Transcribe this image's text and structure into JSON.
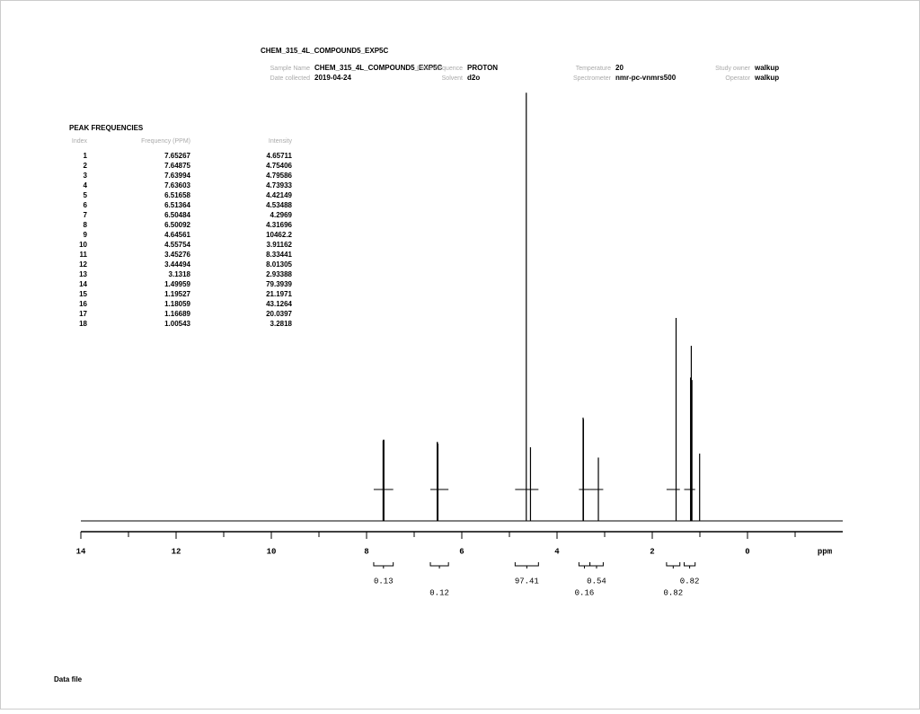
{
  "header": {
    "title": "CHEM_315_4L_COMPOUND5_EXP5C",
    "fields": [
      {
        "label": "Sample Name",
        "value": "CHEM_315_4L_COMPOUND5_EXP5C"
      },
      {
        "label": "Date collected",
        "value": "2019-04-24"
      },
      {
        "label": "Pulse Sequence",
        "value": "PROTON"
      },
      {
        "label": "Solvent",
        "value": "d2o"
      },
      {
        "label": "Temperature",
        "value": "20"
      },
      {
        "label": "Spectrometer",
        "value": "nmr-pc-vnmrs500"
      },
      {
        "label": "Study owner",
        "value": "walkup"
      },
      {
        "label": "Operator",
        "value": "walkup"
      }
    ]
  },
  "peak_table": {
    "title": "PEAK FREQUENCIES",
    "columns": [
      "Index",
      "Frequency (PPM)",
      "Intensity"
    ],
    "rows": [
      [
        1,
        7.65267,
        4.65711
      ],
      [
        2,
        7.64875,
        4.75406
      ],
      [
        3,
        7.63994,
        4.79586
      ],
      [
        4,
        7.63603,
        4.73933
      ],
      [
        5,
        6.51658,
        4.42149
      ],
      [
        6,
        6.51364,
        4.53488
      ],
      [
        7,
        6.50484,
        4.2969
      ],
      [
        8,
        6.50092,
        4.31696
      ],
      [
        9,
        4.64561,
        10462.2
      ],
      [
        10,
        4.55754,
        3.91162
      ],
      [
        11,
        3.45276,
        8.33441
      ],
      [
        12,
        3.44494,
        8.01305
      ],
      [
        13,
        3.1318,
        2.93388
      ],
      [
        14,
        1.49959,
        79.3939
      ],
      [
        15,
        1.19527,
        21.1971
      ],
      [
        16,
        1.18059,
        43.1264
      ],
      [
        17,
        1.16689,
        20.0397
      ],
      [
        18,
        1.00543,
        3.2818
      ]
    ]
  },
  "spectrum": {
    "xlabel": "ppm",
    "xlim": [
      14,
      -2
    ],
    "xticks": [
      14,
      12,
      10,
      8,
      6,
      4,
      2,
      0
    ],
    "xminorticks": [
      13,
      11,
      9,
      7,
      5,
      3,
      1,
      -1
    ],
    "integrals": [
      {
        "start": 7.85,
        "end": 7.44,
        "value": 0.13
      },
      {
        "start": 6.66,
        "end": 6.28,
        "value": 0.12
      },
      {
        "start": 4.88,
        "end": 4.39,
        "value": 97.41
      },
      {
        "start": 3.54,
        "end": 3.31,
        "value": 0.16
      },
      {
        "start": 3.31,
        "end": 3.03,
        "value": 0.54
      },
      {
        "start": 1.7,
        "end": 1.42,
        "value": 0.82
      },
      {
        "start": 1.33,
        "end": 1.1,
        "value": 0.82
      }
    ]
  },
  "footer": {
    "label": "Data file"
  }
}
